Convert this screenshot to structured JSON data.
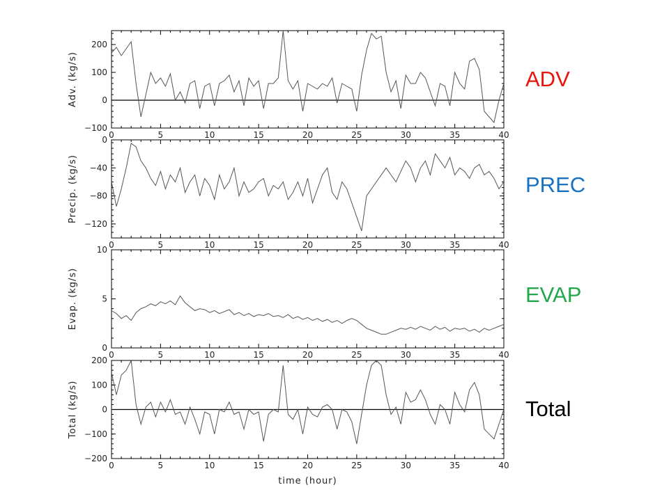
{
  "chart_data": [
    {
      "type": "line",
      "id": "adv",
      "ylabel": "Adv. (kg/s)",
      "tag": "ADV",
      "tag_color": "#e8150b",
      "xlim": [
        0,
        40
      ],
      "ylim": [
        -100,
        250
      ],
      "yticks": [
        -100,
        0,
        100,
        200
      ],
      "xticks": [
        0,
        5,
        10,
        15,
        20,
        25,
        30,
        35,
        40
      ],
      "zero_line": true,
      "x": [
        0,
        0.5,
        1,
        1.5,
        2,
        2.5,
        3,
        3.5,
        4,
        4.5,
        5,
        5.5,
        6,
        6.5,
        7,
        7.5,
        8,
        8.5,
        9,
        9.5,
        10,
        10.5,
        11,
        11.5,
        12,
        12.5,
        13,
        13.5,
        14,
        14.5,
        15,
        15.5,
        16,
        16.5,
        17,
        17.5,
        18,
        18.5,
        19,
        19.5,
        20,
        20.5,
        21,
        21.5,
        22,
        22.5,
        23,
        23.5,
        24,
        24.5,
        25,
        25.5,
        26,
        26.5,
        27,
        27.5,
        28,
        28.5,
        29,
        29.5,
        30,
        30.5,
        31,
        31.5,
        32,
        32.5,
        33,
        33.5,
        34,
        34.5,
        35,
        35.5,
        36,
        36.5,
        37,
        37.5,
        38,
        38.5,
        39,
        39.5,
        40
      ],
      "values": [
        170,
        190,
        160,
        185,
        210,
        60,
        -60,
        20,
        100,
        60,
        80,
        50,
        95,
        0,
        30,
        -10,
        60,
        70,
        -30,
        50,
        60,
        -20,
        60,
        70,
        90,
        30,
        70,
        -20,
        80,
        50,
        70,
        -30,
        60,
        60,
        80,
        250,
        70,
        40,
        70,
        -40,
        60,
        50,
        40,
        60,
        50,
        80,
        -10,
        60,
        50,
        40,
        -40,
        90,
        180,
        240,
        220,
        230,
        100,
        30,
        70,
        -30,
        90,
        60,
        60,
        100,
        80,
        30,
        -20,
        60,
        50,
        -20,
        100,
        60,
        40,
        140,
        150,
        110,
        -40,
        -60,
        -80,
        0,
        60
      ]
    },
    {
      "type": "line",
      "id": "prec",
      "ylabel": "Precip. (kg/s)",
      "tag": "PREC",
      "tag_color": "#1870c0",
      "xlim": [
        0,
        40
      ],
      "ylim": [
        -140,
        0
      ],
      "yticks": [
        -120,
        -80,
        -40,
        0
      ],
      "xticks": [
        0,
        5,
        10,
        15,
        20,
        25,
        30,
        35,
        40
      ],
      "zero_line": false,
      "x": [
        0,
        0.5,
        1,
        1.5,
        2,
        2.5,
        3,
        3.5,
        4,
        4.5,
        5,
        5.5,
        6,
        6.5,
        7,
        7.5,
        8,
        8.5,
        9,
        9.5,
        10,
        10.5,
        11,
        11.5,
        12,
        12.5,
        13,
        13.5,
        14,
        14.5,
        15,
        15.5,
        16,
        16.5,
        17,
        17.5,
        18,
        18.5,
        19,
        19.5,
        20,
        20.5,
        21,
        21.5,
        22,
        22.5,
        23,
        23.5,
        24,
        24.5,
        25,
        25.5,
        26,
        26.5,
        27,
        27.5,
        28,
        28.5,
        29,
        29.5,
        30,
        30.5,
        31,
        31.5,
        32,
        32.5,
        33,
        33.5,
        34,
        34.5,
        35,
        35.5,
        36,
        36.5,
        37,
        37.5,
        38,
        38.5,
        39,
        39.5,
        40
      ],
      "values": [
        -60,
        -95,
        -70,
        -40,
        -5,
        -10,
        -30,
        -40,
        -55,
        -65,
        -45,
        -70,
        -50,
        -60,
        -40,
        -75,
        -60,
        -50,
        -80,
        -55,
        -65,
        -85,
        -50,
        -70,
        -60,
        -40,
        -80,
        -60,
        -75,
        -70,
        -60,
        -55,
        -80,
        -65,
        -70,
        -60,
        -85,
        -75,
        -60,
        -80,
        -55,
        -90,
        -70,
        -50,
        -40,
        -75,
        -85,
        -60,
        -70,
        -90,
        -110,
        -130,
        -80,
        -70,
        -60,
        -50,
        -40,
        -50,
        -60,
        -45,
        -30,
        -40,
        -60,
        -40,
        -30,
        -50,
        -20,
        -30,
        -40,
        -25,
        -50,
        -40,
        -45,
        -55,
        -40,
        -35,
        -50,
        -45,
        -55,
        -70,
        -60
      ]
    },
    {
      "type": "line",
      "id": "evap",
      "ylabel": "Evap. (kg/s)",
      "tag": "EVAP",
      "tag_color": "#22a84a",
      "xlim": [
        0,
        40
      ],
      "ylim": [
        0,
        10
      ],
      "yticks": [
        0,
        5,
        10
      ],
      "xticks": [
        0,
        5,
        10,
        15,
        20,
        25,
        30,
        35,
        40
      ],
      "zero_line": false,
      "x": [
        0,
        0.5,
        1,
        1.5,
        2,
        2.5,
        3,
        3.5,
        4,
        4.5,
        5,
        5.5,
        6,
        6.5,
        7,
        7.5,
        8,
        8.5,
        9,
        9.5,
        10,
        10.5,
        11,
        11.5,
        12,
        12.5,
        13,
        13.5,
        14,
        14.5,
        15,
        15.5,
        16,
        16.5,
        17,
        17.5,
        18,
        18.5,
        19,
        19.5,
        20,
        20.5,
        21,
        21.5,
        22,
        22.5,
        23,
        23.5,
        24,
        24.5,
        25,
        25.5,
        26,
        26.5,
        27,
        27.5,
        28,
        28.5,
        29,
        29.5,
        30,
        30.5,
        31,
        31.5,
        32,
        32.5,
        33,
        33.5,
        34,
        34.5,
        35,
        35.5,
        36,
        36.5,
        37,
        37.5,
        38,
        38.5,
        39,
        39.5,
        40
      ],
      "values": [
        3.8,
        3.5,
        3.0,
        3.3,
        2.8,
        3.6,
        4.0,
        4.2,
        4.5,
        4.3,
        4.7,
        4.5,
        4.8,
        4.4,
        5.3,
        4.6,
        4.2,
        3.8,
        4.0,
        3.9,
        3.6,
        3.8,
        3.5,
        3.7,
        3.9,
        3.4,
        3.6,
        3.3,
        3.5,
        3.2,
        3.4,
        3.3,
        3.5,
        3.2,
        3.3,
        3.1,
        3.4,
        3.0,
        3.2,
        2.9,
        3.1,
        2.8,
        3.0,
        2.7,
        2.9,
        2.6,
        2.8,
        2.5,
        2.8,
        3.0,
        2.8,
        2.4,
        2.0,
        1.8,
        1.6,
        1.4,
        1.4,
        1.6,
        1.8,
        2.0,
        1.9,
        2.1,
        1.9,
        2.2,
        2.0,
        1.8,
        2.2,
        1.9,
        2.1,
        1.7,
        2.0,
        1.9,
        2.0,
        1.7,
        1.9,
        1.6,
        2.0,
        1.8,
        2.0,
        2.2,
        2.4
      ]
    },
    {
      "type": "line",
      "id": "total",
      "ylabel": "Total (kg/s)",
      "tag": "Total",
      "tag_color": "#000000",
      "xlabel": "time (hour)",
      "xlim": [
        0,
        40
      ],
      "ylim": [
        -200,
        200
      ],
      "yticks": [
        -200,
        -100,
        0,
        100,
        200
      ],
      "xticks": [
        0,
        5,
        10,
        15,
        20,
        25,
        30,
        35,
        40
      ],
      "zero_line": true,
      "x": [
        0,
        0.5,
        1,
        1.5,
        2,
        2.5,
        3,
        3.5,
        4,
        4.5,
        5,
        5.5,
        6,
        6.5,
        7,
        7.5,
        8,
        8.5,
        9,
        9.5,
        10,
        10.5,
        11,
        11.5,
        12,
        12.5,
        13,
        13.5,
        14,
        14.5,
        15,
        15.5,
        16,
        16.5,
        17,
        17.5,
        18,
        18.5,
        19,
        19.5,
        20,
        20.5,
        21,
        21.5,
        22,
        22.5,
        23,
        23.5,
        24,
        24.5,
        25,
        25.5,
        26,
        26.5,
        27,
        27.5,
        28,
        28.5,
        29,
        29.5,
        30,
        30.5,
        31,
        31.5,
        32,
        32.5,
        33,
        33.5,
        34,
        34.5,
        35,
        35.5,
        36,
        36.5,
        37,
        37.5,
        38,
        38.5,
        39,
        39.5,
        40
      ],
      "values": [
        150,
        60,
        140,
        160,
        200,
        20,
        -60,
        10,
        30,
        -30,
        30,
        -10,
        40,
        -20,
        -10,
        -60,
        10,
        -40,
        -100,
        -10,
        -20,
        -100,
        0,
        -10,
        30,
        -20,
        -10,
        -80,
        0,
        -20,
        -10,
        -130,
        -20,
        0,
        -10,
        180,
        -20,
        -40,
        0,
        -100,
        10,
        -20,
        -30,
        10,
        20,
        0,
        -80,
        0,
        -10,
        -50,
        -140,
        -20,
        100,
        180,
        200,
        180,
        60,
        -20,
        10,
        -60,
        70,
        30,
        40,
        80,
        40,
        -20,
        -60,
        20,
        0,
        -60,
        70,
        20,
        -10,
        80,
        110,
        60,
        -80,
        -100,
        -120,
        -60,
        0
      ]
    }
  ]
}
